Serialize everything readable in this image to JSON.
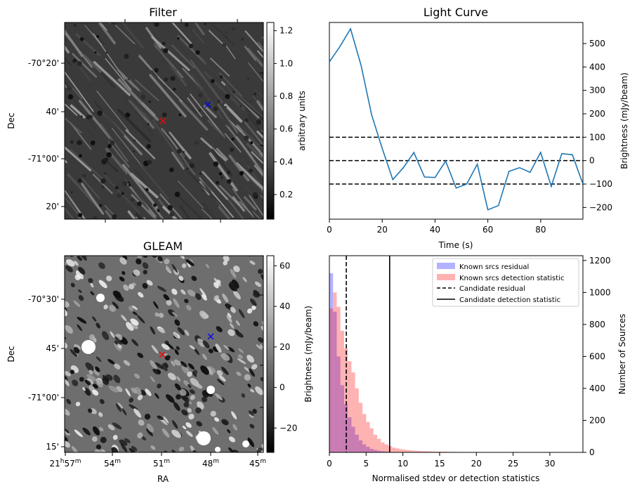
{
  "chart_data": [
    {
      "type": "heatmap",
      "title": "Filter",
      "ylabel": "Dec",
      "y_tick_labels": [
        "-70°20'",
        "40'",
        "-71°00'",
        "20'"
      ],
      "colorbar": {
        "label": "arbitrary units",
        "range": [
          0.05,
          1.25
        ],
        "ticks": [
          0.2,
          0.4,
          0.6,
          0.8,
          1.0,
          1.2
        ],
        "tick_labels": [
          "0.2",
          "0.4",
          "0.6",
          "0.8",
          "1.0",
          "1.2"
        ],
        "colormap": "gray"
      },
      "markers": [
        {
          "name": "candidate",
          "symbol": "x",
          "color": "#ff0000"
        },
        {
          "name": "comparison",
          "symbol": "x",
          "color": "#0000ff"
        }
      ]
    },
    {
      "type": "line",
      "title": "Light Curve",
      "xlabel": "Time (s)",
      "ylabel": "Brightness (mJy/beam)",
      "xlim": [
        0,
        96
      ],
      "ylim": [
        -250,
        590
      ],
      "x_ticks": [
        0,
        20,
        40,
        60,
        80
      ],
      "y_ticks": [
        -200,
        -100,
        0,
        100,
        200,
        300,
        400,
        500
      ],
      "x": [
        0,
        4,
        8,
        12,
        16,
        20,
        24,
        28,
        32,
        36,
        40,
        44,
        48,
        52,
        56,
        60,
        64,
        68,
        72,
        76,
        80,
        84,
        88,
        92,
        96
      ],
      "values": [
        422,
        487,
        563,
        407,
        195,
        52,
        -81,
        -30,
        35,
        -70,
        -72,
        -2,
        -117,
        -100,
        -15,
        -210,
        -192,
        -46,
        -30,
        -50,
        35,
        -110,
        30,
        25,
        -100
      ],
      "line_color": "#1f77b4",
      "hlines": [
        {
          "y": 100,
          "style": "dashed"
        },
        {
          "y": 0,
          "style": "dashed"
        },
        {
          "y": -100,
          "style": "dashed"
        }
      ]
    },
    {
      "type": "heatmap",
      "title": "GLEAM",
      "xlabel": "RA",
      "ylabel": "Dec",
      "x_tick_labels": [
        {
          "main": "21",
          "h": "h",
          "val": "57",
          "unit": "m"
        },
        {
          "val": "54",
          "unit": "m"
        },
        {
          "val": "51",
          "unit": "m"
        },
        {
          "val": "48",
          "unit": "m"
        },
        {
          "val": "45",
          "unit": "m"
        }
      ],
      "y_tick_labels": [
        "-70°30'",
        "45'",
        "-71°00'",
        "15'"
      ],
      "colorbar": {
        "label": "Brightness (mJy/beam)",
        "range": [
          -32,
          65
        ],
        "ticks": [
          -20,
          0,
          20,
          40,
          60
        ],
        "tick_labels": [
          "−20",
          "0",
          "20",
          "40",
          "60"
        ],
        "colormap": "gray"
      },
      "markers": [
        {
          "name": "candidate",
          "symbol": "x",
          "color": "#ff0000"
        },
        {
          "name": "comparison",
          "symbol": "x",
          "color": "#0000ff"
        }
      ]
    },
    {
      "type": "bar",
      "subtype": "histogram",
      "xlabel": "Normalised stdev or detection statistics",
      "ylabel": "Number of Sources",
      "xlim": [
        0,
        34.5
      ],
      "ylim": [
        0,
        1230
      ],
      "x_ticks": [
        0,
        5,
        10,
        15,
        20,
        25,
        30
      ],
      "y_ticks": [
        0,
        200,
        400,
        600,
        800,
        1000,
        1200
      ],
      "bin_width": 0.5,
      "series": [
        {
          "name": "Known srcs residual",
          "color": "#0000ff",
          "alpha": 0.3,
          "values": [
            1120,
            880,
            600,
            420,
            300,
            220,
            160,
            110,
            75,
            50,
            35,
            22,
            15,
            10,
            7,
            5,
            3,
            2,
            1
          ]
        },
        {
          "name": "Known srcs detection statistic",
          "color": "#ff0000",
          "alpha": 0.3,
          "values": [
            900,
            1000,
            910,
            760,
            650,
            570,
            500,
            400,
            310,
            240,
            190,
            150,
            110,
            85,
            62,
            50,
            40,
            30,
            25,
            20,
            17,
            14,
            12,
            10,
            9,
            8,
            7,
            6,
            5,
            5,
            4,
            4,
            3,
            3,
            3,
            2,
            2,
            2,
            2,
            2,
            2,
            1,
            1,
            1,
            1,
            1,
            1,
            1,
            1,
            1,
            1,
            1,
            1,
            1,
            1,
            1,
            1,
            1,
            1,
            1,
            1,
            1,
            1,
            1
          ]
        }
      ],
      "vlines": [
        {
          "name": "Candidate residual",
          "x": 2.3,
          "style": "dashed"
        },
        {
          "name": "Candidate detection statistic",
          "x": 8.2,
          "style": "solid"
        }
      ],
      "legend": {
        "position": "top-right",
        "entries": [
          "Known srcs residual",
          "Known srcs detection statistic",
          "Candidate residual",
          "Candidate detection statistic"
        ]
      }
    }
  ]
}
